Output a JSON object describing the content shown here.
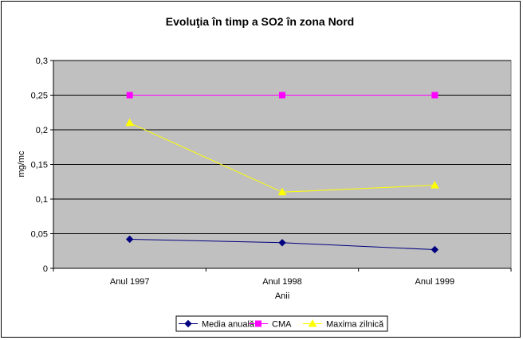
{
  "chart_data": {
    "type": "line",
    "title": "Evoluţia în timp a SO2 în zona Nord",
    "xlabel": "Anii",
    "ylabel": "mg/mc",
    "categories": [
      "Anul 1997",
      "Anul 1998",
      "Anul 1999"
    ],
    "ylim": [
      0,
      0.3
    ],
    "yticks": [
      "0",
      "0,05",
      "0,1",
      "0,15",
      "0,2",
      "0,25",
      "0,3"
    ],
    "ytick_values": [
      0,
      0.05,
      0.1,
      0.15,
      0.2,
      0.25,
      0.3
    ],
    "grid": true,
    "legend_position": "bottom",
    "plot_background": "#c0c0c0",
    "series": [
      {
        "name": "Media anuală",
        "values": [
          0.042,
          0.037,
          0.027
        ],
        "color": "#000080",
        "marker": "diamond"
      },
      {
        "name": "CMA",
        "values": [
          0.25,
          0.25,
          0.25
        ],
        "color": "#ff00ff",
        "marker": "square"
      },
      {
        "name": "Maxima zilnică",
        "values": [
          0.21,
          0.11,
          0.12
        ],
        "color": "#ffff00",
        "marker": "triangle"
      }
    ]
  }
}
